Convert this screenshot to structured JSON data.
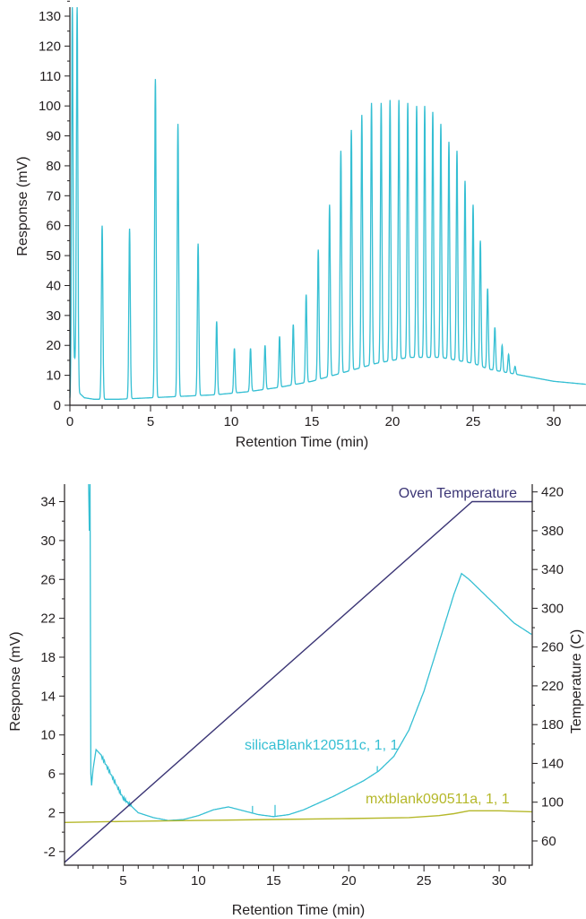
{
  "colors": {
    "trace": "#35bfd3",
    "blank": "#b5b82a",
    "oven": "#3b3575",
    "axis": "#231f20"
  },
  "chart_data": [
    {
      "type": "line",
      "xlabel": "Retention Time (min)",
      "ylabel": "Response (mV)",
      "xlim": [
        0,
        32
      ],
      "ylim": [
        0,
        133
      ],
      "xticks": [
        "0",
        "5",
        "10",
        "15",
        "20",
        "25",
        "30"
      ],
      "yticks": [
        "0",
        "10",
        "20",
        "30",
        "40",
        "50",
        "60",
        "70",
        "80",
        "90",
        "100",
        "110",
        "120",
        "130"
      ],
      "baseline": [
        [
          0.0,
          2
        ],
        [
          0.3,
          15
        ],
        [
          0.6,
          4
        ],
        [
          0.9,
          2.5
        ],
        [
          1.5,
          2
        ],
        [
          3,
          2
        ],
        [
          5,
          2.5
        ],
        [
          7,
          3
        ],
        [
          9,
          3.5
        ],
        [
          11,
          4.5
        ],
        [
          13,
          6
        ],
        [
          15,
          8
        ],
        [
          17,
          11
        ],
        [
          19,
          14
        ],
        [
          21,
          16
        ],
        [
          23,
          16
        ],
        [
          25,
          14
        ],
        [
          26,
          12
        ],
        [
          27,
          11
        ],
        [
          28,
          10
        ],
        [
          29,
          9
        ],
        [
          30,
          8
        ],
        [
          31,
          7.5
        ],
        [
          32,
          7
        ]
      ],
      "series": [
        {
          "x": [
            0.15,
            0.45,
            2.0,
            3.7,
            5.3,
            6.7,
            7.95,
            9.1,
            10.2,
            11.2,
            12.1,
            13.0,
            13.85,
            14.65,
            15.4,
            16.1,
            16.8,
            17.45,
            18.1,
            18.7,
            19.3,
            19.85,
            20.4,
            20.95,
            21.5,
            22.0,
            22.5,
            23.0,
            23.5,
            24.0,
            24.5,
            25.0,
            25.45,
            25.9,
            26.35,
            26.8,
            27.2,
            27.6
          ],
          "values": [
            133,
            133,
            60,
            59,
            109,
            94,
            54,
            28,
            19,
            19,
            20,
            23,
            27,
            37,
            52,
            67,
            85,
            92,
            97,
            101,
            101,
            102,
            102,
            101,
            100,
            100,
            98,
            94,
            88,
            85,
            75,
            67,
            55,
            39,
            26,
            20,
            17,
            13
          ]
        }
      ]
    },
    {
      "type": "line",
      "xlabel": "Retention Time (min)",
      "ylabel": "Response (mV)",
      "y2label": "Temperature (C)",
      "xlim": [
        1.1,
        32.2
      ],
      "ylim": [
        -3.4,
        35.8
      ],
      "y2lim": [
        35,
        428
      ],
      "xticks": [
        "5",
        "10",
        "15",
        "20",
        "25",
        "30"
      ],
      "yticks": [
        "-2",
        "2",
        "6",
        "10",
        "14",
        "18",
        "22",
        "26",
        "30",
        "34"
      ],
      "y2ticks": [
        "60",
        "100",
        "140",
        "180",
        "220",
        "260",
        "300",
        "340",
        "380",
        "420"
      ],
      "series": [
        {
          "name": "silicaBlank120511c, 1, 1",
          "x": [
            2.7,
            2.75,
            2.8,
            2.85,
            2.9,
            3.0,
            3.2,
            3.5,
            4.0,
            5.0,
            6.0,
            7.0,
            8.0,
            9.0,
            10.0,
            11.0,
            12.0,
            13.0,
            14.0,
            15.0,
            16.0,
            17.0,
            18.0,
            19.0,
            20.0,
            21.0,
            22.0,
            23.0,
            24.0,
            25.0,
            26.0,
            27.0,
            27.5,
            28.0,
            29.0,
            30.0,
            31.0,
            32.2
          ],
          "values": [
            35.8,
            31,
            35.8,
            6,
            4.8,
            6.5,
            8.5,
            8,
            6.5,
            3.5,
            2,
            1.5,
            1.2,
            1.3,
            1.7,
            2.3,
            2.6,
            2.2,
            1.8,
            1.6,
            1.8,
            2.3,
            3,
            3.7,
            4.5,
            5.3,
            6.3,
            7.8,
            10.5,
            14.5,
            19.5,
            24.5,
            26.6,
            26,
            24.5,
            23,
            21.5,
            20.3
          ]
        },
        {
          "name": "mxtblank090511a, 1, 1",
          "x": [
            1.1,
            5,
            10,
            15,
            20,
            24,
            26,
            27,
            28,
            30,
            32.2
          ],
          "values": [
            1.0,
            1.1,
            1.2,
            1.3,
            1.4,
            1.5,
            1.7,
            1.9,
            2.2,
            2.2,
            2.1
          ]
        },
        {
          "name": "Oven Temperature",
          "x": [
            1.1,
            28.2,
            32.2
          ],
          "values": [
            38,
            410,
            410
          ]
        }
      ]
    }
  ]
}
